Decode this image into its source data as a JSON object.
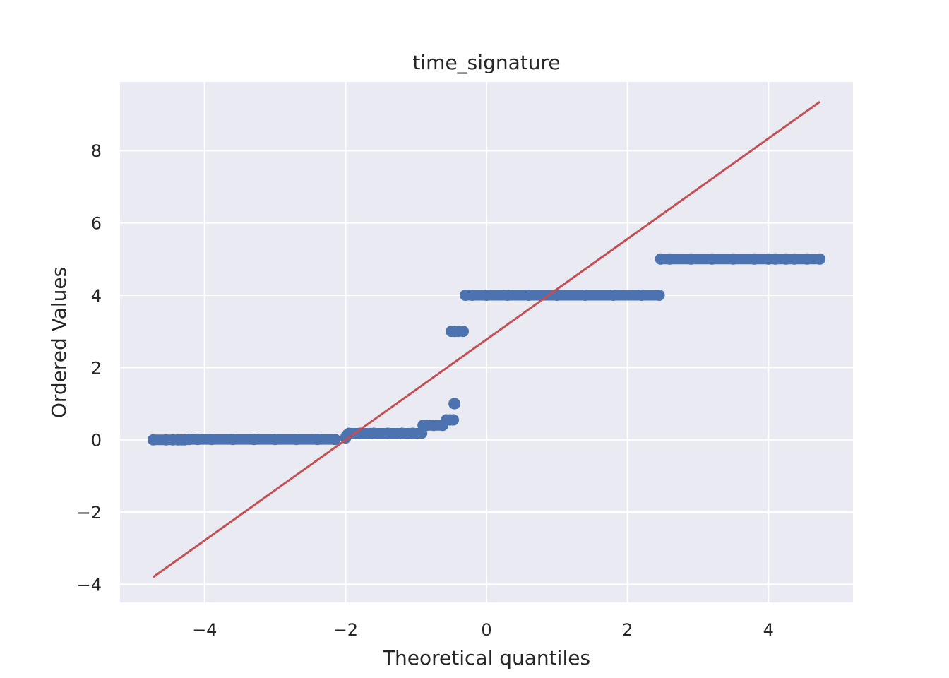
{
  "chart_data": {
    "type": "scatter",
    "title": "time_signature",
    "xlabel": "Theoretical quantiles",
    "ylabel": "Ordered Values",
    "xlim": [
      -5.2,
      5.2
    ],
    "ylim": [
      -4.5,
      9.9
    ],
    "xticks": [
      -4,
      -2,
      0,
      2,
      4
    ],
    "yticks": [
      -4,
      -2,
      0,
      2,
      4,
      6,
      8
    ],
    "xtick_labels": [
      "−4",
      "−2",
      "0",
      "2",
      "4"
    ],
    "ytick_labels": [
      "−4",
      "−2",
      "0",
      "2",
      "4",
      "6",
      "8"
    ],
    "grid": true,
    "background": "#eaeaf2",
    "grid_color": "#ffffff",
    "series": [
      {
        "kind": "points",
        "color": "#4c72b0",
        "x": [
          -4.73,
          -4.55,
          -4.45,
          -4.38,
          -4.33,
          -4.28,
          -4.22,
          -4.1,
          -3.9,
          -3.6,
          -3.3,
          -3.0,
          -2.7,
          -2.4,
          -2.15,
          -2.0,
          -1.99,
          -1.97,
          -1.95,
          -1.8,
          -1.6,
          -1.4,
          -1.2,
          -1.05,
          -0.92,
          -0.9,
          -0.85,
          -0.75,
          -0.62,
          -0.57,
          -0.52,
          -0.47,
          -0.46,
          -0.45,
          -0.45,
          -0.5,
          -0.45,
          -0.4,
          -0.33,
          -0.3,
          -0.2,
          0.0,
          0.3,
          0.6,
          1.0,
          1.4,
          1.8,
          2.2,
          2.45,
          2.47,
          2.6,
          2.9,
          3.2,
          3.5,
          3.8,
          4.0,
          4.1,
          4.25,
          4.37,
          4.55,
          4.73
        ],
        "y": [
          0,
          0,
          0,
          0,
          0,
          0,
          0.01,
          0.01,
          0.01,
          0.01,
          0.01,
          0.01,
          0.01,
          0.01,
          0.01,
          0.05,
          0.1,
          0.15,
          0.18,
          0.18,
          0.18,
          0.18,
          0.18,
          0.18,
          0.18,
          0.4,
          0.4,
          0.4,
          0.4,
          0.55,
          0.55,
          0.55,
          1.0,
          1.0,
          3.0,
          3.0,
          3.0,
          3.0,
          3.0,
          4,
          4,
          4,
          4,
          4,
          4,
          4,
          4,
          4,
          4,
          5,
          5,
          5,
          5,
          5,
          5,
          5,
          5,
          5,
          5,
          5,
          5
        ]
      },
      {
        "kind": "line",
        "color": "#c44e52",
        "x": [
          -4.73,
          4.73
        ],
        "y": [
          -3.8,
          9.35
        ]
      }
    ]
  }
}
